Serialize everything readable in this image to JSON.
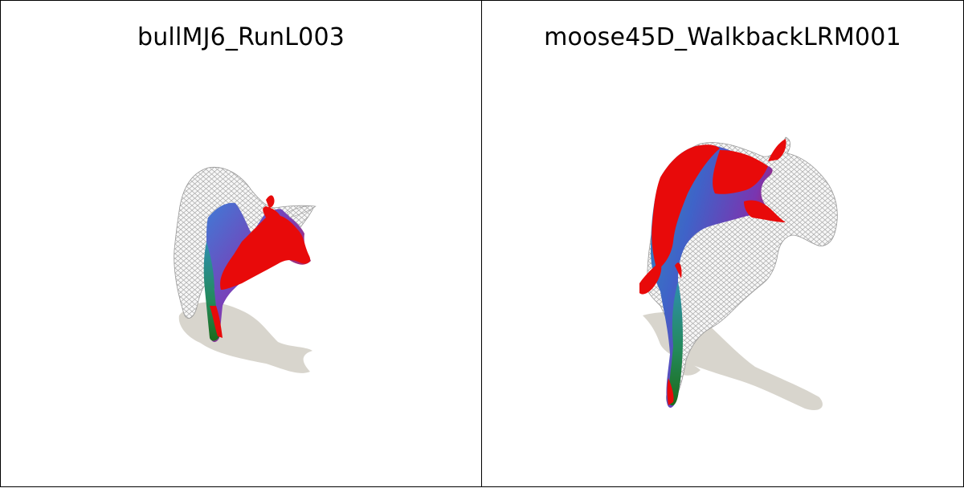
{
  "panels": [
    {
      "title": "bullMJ6_RunL003"
    },
    {
      "title": "moose45D_WalkbackLRM001"
    }
  ]
}
